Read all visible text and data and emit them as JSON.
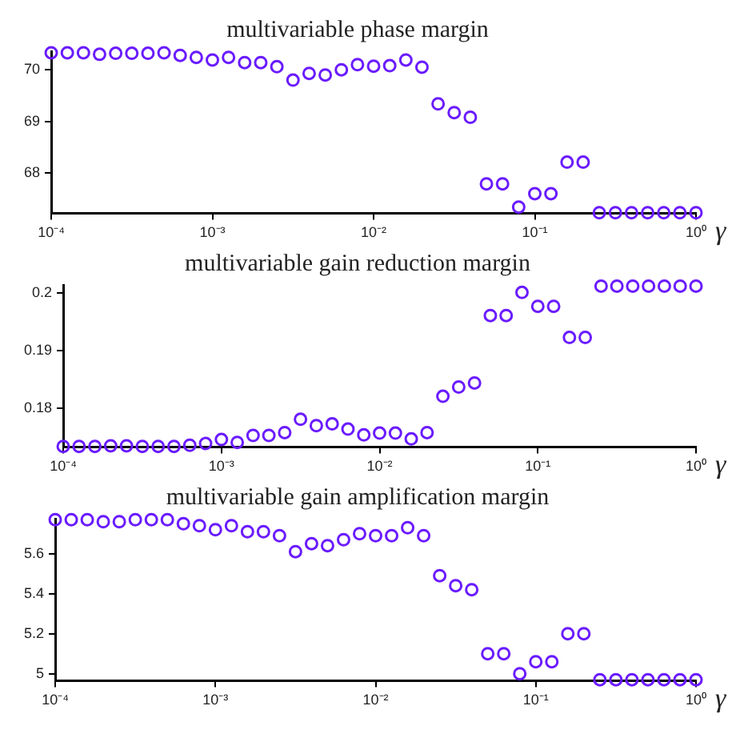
{
  "chart_data": [
    {
      "type": "scatter",
      "title": "multivariable phase margin",
      "xlabel": "γ",
      "log": "x",
      "grid": false,
      "legend": false,
      "marker": "circle",
      "xlim": [
        0.0001,
        1
      ],
      "xticks": [
        {
          "value": 0.0001,
          "label": "10⁻⁴"
        },
        {
          "value": 0.001,
          "label": "10⁻³"
        },
        {
          "value": 0.01,
          "label": "10⁻²"
        },
        {
          "value": 0.1,
          "label": "10⁻¹"
        },
        {
          "value": 1,
          "label": "10⁰"
        }
      ],
      "ylim": [
        67.22,
        70.36
      ],
      "yticks": [
        68,
        69,
        70
      ],
      "series": [
        {
          "color": "#6a1bff",
          "x": [
            0.0001,
            0.0001259,
            0.0001585,
            0.0001995,
            0.0002512,
            0.0003162,
            0.0003981,
            0.0005012,
            0.000631,
            0.0007943,
            0.001,
            0.001259,
            0.001585,
            0.001995,
            0.002512,
            0.003162,
            0.003981,
            0.005012,
            0.00631,
            0.007943,
            0.01,
            0.01259,
            0.01585,
            0.01995,
            0.02512,
            0.03162,
            0.03981,
            0.05012,
            0.0631,
            0.07943,
            0.1,
            0.1259,
            0.1585,
            0.1995,
            0.2512,
            0.3162,
            0.3981,
            0.5012,
            0.631,
            0.7943,
            1
          ],
          "values": [
            70.33,
            70.33,
            70.33,
            70.3,
            70.32,
            70.32,
            70.32,
            70.33,
            70.28,
            70.24,
            70.19,
            70.24,
            70.14,
            70.14,
            70.06,
            69.8,
            69.93,
            69.9,
            70,
            70.1,
            70.07,
            70.08,
            70.19,
            70.05,
            69.34,
            69.17,
            69.08,
            67.79,
            67.79,
            67.34,
            67.6,
            67.6,
            68.21,
            68.21,
            67.23,
            67.23,
            67.23,
            67.23,
            67.23,
            67.23,
            67.23
          ]
        }
      ]
    },
    {
      "type": "scatter",
      "title": "multivariable gain reduction margin",
      "xlabel": "γ",
      "log": "x",
      "grid": false,
      "legend": false,
      "marker": "circle",
      "xlim": [
        0.0001,
        1
      ],
      "xticks": [
        {
          "value": 0.0001,
          "label": "10⁻⁴"
        },
        {
          "value": 0.001,
          "label": "10⁻³"
        },
        {
          "value": 0.01,
          "label": "10⁻²"
        },
        {
          "value": 0.1,
          "label": "10⁻¹"
        },
        {
          "value": 1,
          "label": "10⁰"
        }
      ],
      "ylim": [
        0.1733,
        0.2014
      ],
      "yticks": [
        0.18,
        0.19,
        0.2
      ],
      "series": [
        {
          "color": "#6a1bff",
          "x": [
            0.0001,
            0.0001259,
            0.0001585,
            0.0001995,
            0.0002512,
            0.0003162,
            0.0003981,
            0.0005012,
            0.000631,
            0.0007943,
            0.001,
            0.001259,
            0.001585,
            0.001995,
            0.002512,
            0.003162,
            0.003981,
            0.005012,
            0.00631,
            0.007943,
            0.01,
            0.01259,
            0.01585,
            0.01995,
            0.02512,
            0.03162,
            0.03981,
            0.05012,
            0.0631,
            0.07943,
            0.1,
            0.1259,
            0.1585,
            0.1995,
            0.2512,
            0.3162,
            0.3981,
            0.5012,
            0.631,
            0.7943,
            1
          ],
          "values": [
            0.1734,
            0.1734,
            0.1734,
            0.1735,
            0.1735,
            0.1734,
            0.1734,
            0.1734,
            0.1736,
            0.1739,
            0.1746,
            0.1741,
            0.1753,
            0.1753,
            0.1758,
            0.1781,
            0.177,
            0.1773,
            0.1764,
            0.1754,
            0.1757,
            0.1757,
            0.1747,
            0.1758,
            0.1821,
            0.1837,
            0.1844,
            0.1961,
            0.1961,
            0.2001,
            0.1977,
            0.1977,
            0.1923,
            0.1923,
            0.2012,
            0.2012,
            0.2012,
            0.2012,
            0.2012,
            0.2012,
            0.2012
          ]
        }
      ]
    },
    {
      "type": "scatter",
      "title": "multivariable gain amplification margin",
      "xlabel": "γ",
      "log": "x",
      "grid": false,
      "legend": false,
      "marker": "circle",
      "xlim": [
        0.0001,
        1
      ],
      "xticks": [
        {
          "value": 0.0001,
          "label": "10⁻⁴"
        },
        {
          "value": 0.001,
          "label": "10⁻³"
        },
        {
          "value": 0.01,
          "label": "10⁻²"
        },
        {
          "value": 0.1,
          "label": "10⁻¹"
        },
        {
          "value": 1,
          "label": "10⁰"
        }
      ],
      "ylim": [
        4.965,
        5.775
      ],
      "yticks": [
        5,
        5.2,
        5.4,
        5.6
      ],
      "series": [
        {
          "color": "#6a1bff",
          "x": [
            0.0001,
            0.0001259,
            0.0001585,
            0.0001995,
            0.0002512,
            0.0003162,
            0.0003981,
            0.0005012,
            0.000631,
            0.0007943,
            0.001,
            0.001259,
            0.001585,
            0.001995,
            0.002512,
            0.003162,
            0.003981,
            0.005012,
            0.00631,
            0.007943,
            0.01,
            0.01259,
            0.01585,
            0.01995,
            0.02512,
            0.03162,
            0.03981,
            0.05012,
            0.0631,
            0.07943,
            0.1,
            0.1259,
            0.1585,
            0.1995,
            0.2512,
            0.3162,
            0.3981,
            0.5012,
            0.631,
            0.7943,
            1
          ],
          "values": [
            5.77,
            5.77,
            5.77,
            5.76,
            5.76,
            5.77,
            5.77,
            5.77,
            5.75,
            5.74,
            5.72,
            5.74,
            5.71,
            5.71,
            5.69,
            5.61,
            5.65,
            5.64,
            5.67,
            5.7,
            5.69,
            5.69,
            5.73,
            5.69,
            5.49,
            5.44,
            5.42,
            5.1,
            5.1,
            5,
            5.06,
            5.06,
            5.2,
            5.2,
            4.97,
            4.97,
            4.97,
            4.97,
            4.97,
            4.97,
            4.97
          ]
        }
      ]
    }
  ]
}
